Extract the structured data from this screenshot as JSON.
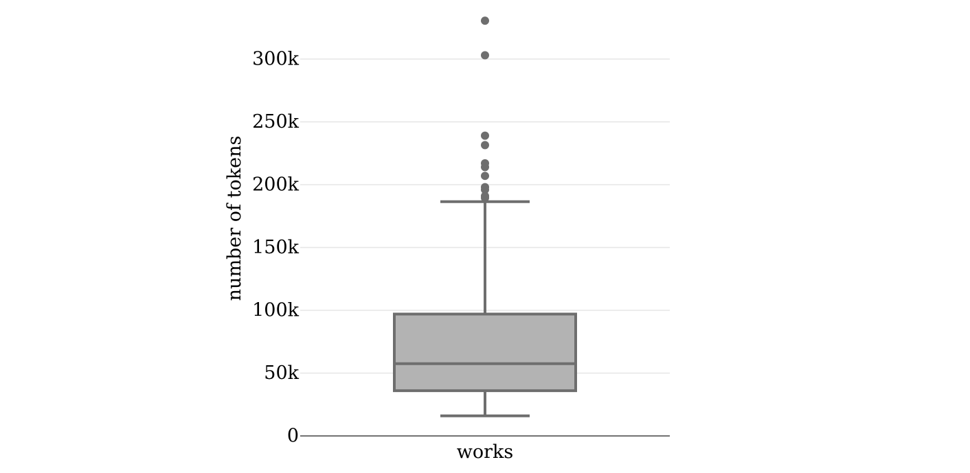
{
  "chart_data": {
    "type": "box",
    "ylabel": "number of tokens",
    "xlabel": "",
    "ylim": [
      0,
      335000
    ],
    "y_ticks": [
      {
        "value": 0,
        "label": "0"
      },
      {
        "value": 50000,
        "label": "50k"
      },
      {
        "value": 100000,
        "label": "100k"
      },
      {
        "value": 150000,
        "label": "150k"
      },
      {
        "value": 200000,
        "label": "200k"
      },
      {
        "value": 250000,
        "label": "250k"
      },
      {
        "value": 300000,
        "label": "300k"
      }
    ],
    "grid": true,
    "colors": {
      "fill": "#b3b3b3",
      "line": "#6e6e6e"
    },
    "boxes": [
      {
        "category": "works",
        "whisker_low": 16000,
        "q1": 36000,
        "median": 57500,
        "q3": 97000,
        "whisker_high": 186500,
        "outliers": [
          189500,
          191000,
          196000,
          198000,
          207000,
          214000,
          217000,
          231500,
          239000,
          303000,
          330500
        ]
      }
    ]
  }
}
